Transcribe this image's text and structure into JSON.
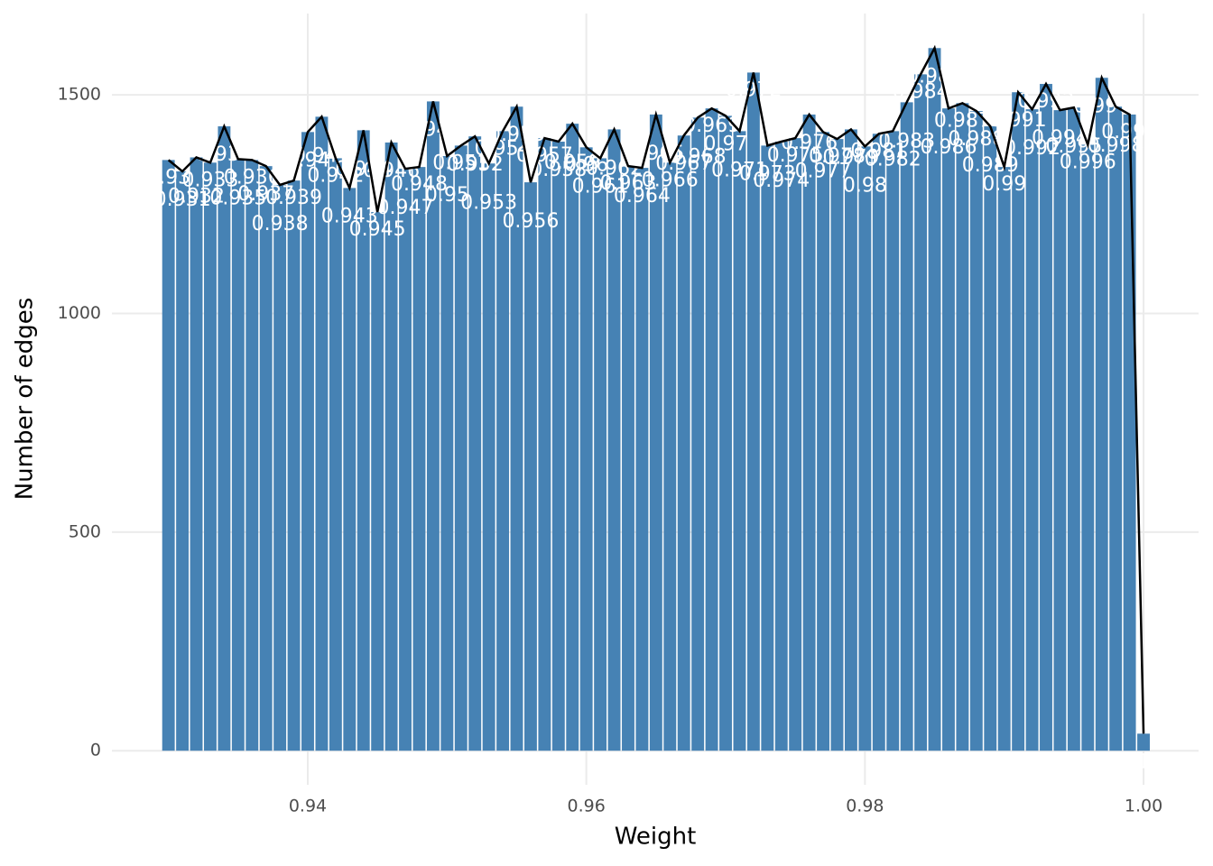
{
  "chart_data": {
    "type": "bar",
    "x_label": "Weight",
    "y_label": "Number of edges",
    "x": [
      0.93,
      0.931,
      0.932,
      0.933,
      0.934,
      0.935,
      0.936,
      0.937,
      0.938,
      0.939,
      0.94,
      0.941,
      0.942,
      0.943,
      0.944,
      0.945,
      0.946,
      0.947,
      0.948,
      0.949,
      0.95,
      0.951,
      0.952,
      0.953,
      0.954,
      0.955,
      0.956,
      0.957,
      0.958,
      0.959,
      0.96,
      0.961,
      0.962,
      0.963,
      0.964,
      0.965,
      0.966,
      0.967,
      0.968,
      0.969,
      0.97,
      0.971,
      0.972,
      0.973,
      0.974,
      0.975,
      0.976,
      0.977,
      0.978,
      0.979,
      0.98,
      0.981,
      0.982,
      0.983,
      0.984,
      0.985,
      0.986,
      0.987,
      0.988,
      0.989,
      0.99,
      0.991,
      0.992,
      0.993,
      0.994,
      0.995,
      0.996,
      0.997,
      0.998,
      0.999,
      1
    ],
    "values": [
      1351,
      1325,
      1357,
      1345,
      1428,
      1353,
      1351,
      1337,
      1294,
      1304,
      1415,
      1450,
      1355,
      1287,
      1419,
      1232,
      1391,
      1331,
      1335,
      1485,
      1360,
      1384,
      1405,
      1343,
      1417,
      1473,
      1300,
      1401,
      1393,
      1434,
      1380,
      1355,
      1421,
      1337,
      1333,
      1455,
      1345,
      1407,
      1448,
      1469,
      1452,
      1417,
      1551,
      1384,
      1393,
      1401,
      1455,
      1415,
      1399,
      1421,
      1382,
      1411,
      1417,
      1483,
      1547,
      1607,
      1469,
      1481,
      1463,
      1428,
      1335,
      1506,
      1467,
      1525,
      1465,
      1471,
      1386,
      1539,
      1473,
      1455,
      39
    ],
    "color": "#4682b4",
    "line_color": "#000000",
    "xlim": [
      0.92594,
      1.00395
    ],
    "ylim": [
      -78,
      1686
    ],
    "xticks": [
      {
        "value": 0.94,
        "label": "0.94"
      },
      {
        "value": 0.96,
        "label": "0.96"
      },
      {
        "value": 0.98,
        "label": "0.98"
      },
      {
        "value": 1,
        "label": "1.00"
      }
    ],
    "yticks": [
      0,
      500,
      1000,
      1500
    ],
    "grid": true
  }
}
